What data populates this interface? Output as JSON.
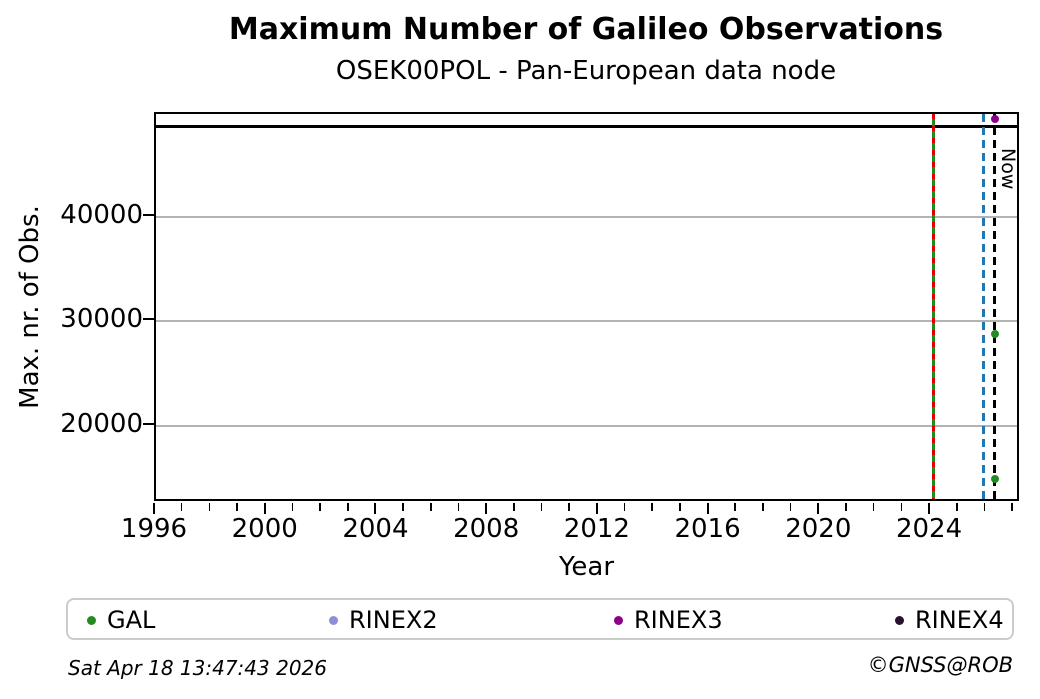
{
  "header": {
    "title": "Maximum Number of Galileo Observations",
    "subtitle": "OSEK00POL - Pan-European data node"
  },
  "footer": {
    "timestamp": "Sat Apr 18 13:47:43 2026",
    "credit": "©GNSS@ROB"
  },
  "chart_data": {
    "type": "scatter",
    "title": "Maximum Number of Galileo Observations",
    "subtitle": "OSEK00POL - Pan-European data node",
    "xlabel": "Year",
    "ylabel": "Max. nr. of Obs.",
    "xlim": [
      1996,
      2027.25
    ],
    "ylim": [
      12670,
      49810
    ],
    "xticks_major": [
      1996,
      2000,
      2004,
      2008,
      2012,
      2016,
      2020,
      2024
    ],
    "xticks_minor_interval": 1,
    "yticks": [
      20000,
      30000,
      40000
    ],
    "grid": "horizontal-only",
    "grid_color": "#b3b3b3",
    "legend_position": "bottom",
    "series": [
      {
        "name": "GAL",
        "color": "#228B22",
        "marker": "circle",
        "points": [
          {
            "x": 2026.3,
            "y": 28760
          },
          {
            "x": 2026.3,
            "y": 14950
          }
        ]
      },
      {
        "name": "RINEX2",
        "color": "#8e8ed6",
        "marker": "circle",
        "points": []
      },
      {
        "name": "RINEX3",
        "color": "#8b008b",
        "marker": "circle",
        "points": [
          {
            "x": 2026.3,
            "y": 49330
          }
        ]
      },
      {
        "name": "RINEX4",
        "color": "#2a1030",
        "marker": "circle",
        "points": []
      }
    ],
    "hlines": [
      {
        "y": 48600,
        "color": "#000000",
        "style": "solid"
      }
    ],
    "vlines": [
      {
        "x": 2024.1,
        "color": "#1f8b1f",
        "style": "solid",
        "label": ""
      },
      {
        "x": 2024.1,
        "color": "#dd0000",
        "style": "dashed",
        "label": ""
      },
      {
        "x": 2025.9,
        "color": "#1f77b4",
        "style": "dashed",
        "label": ""
      },
      {
        "x": 2026.3,
        "color": "#000000",
        "style": "dashed",
        "label": "Now"
      }
    ]
  }
}
